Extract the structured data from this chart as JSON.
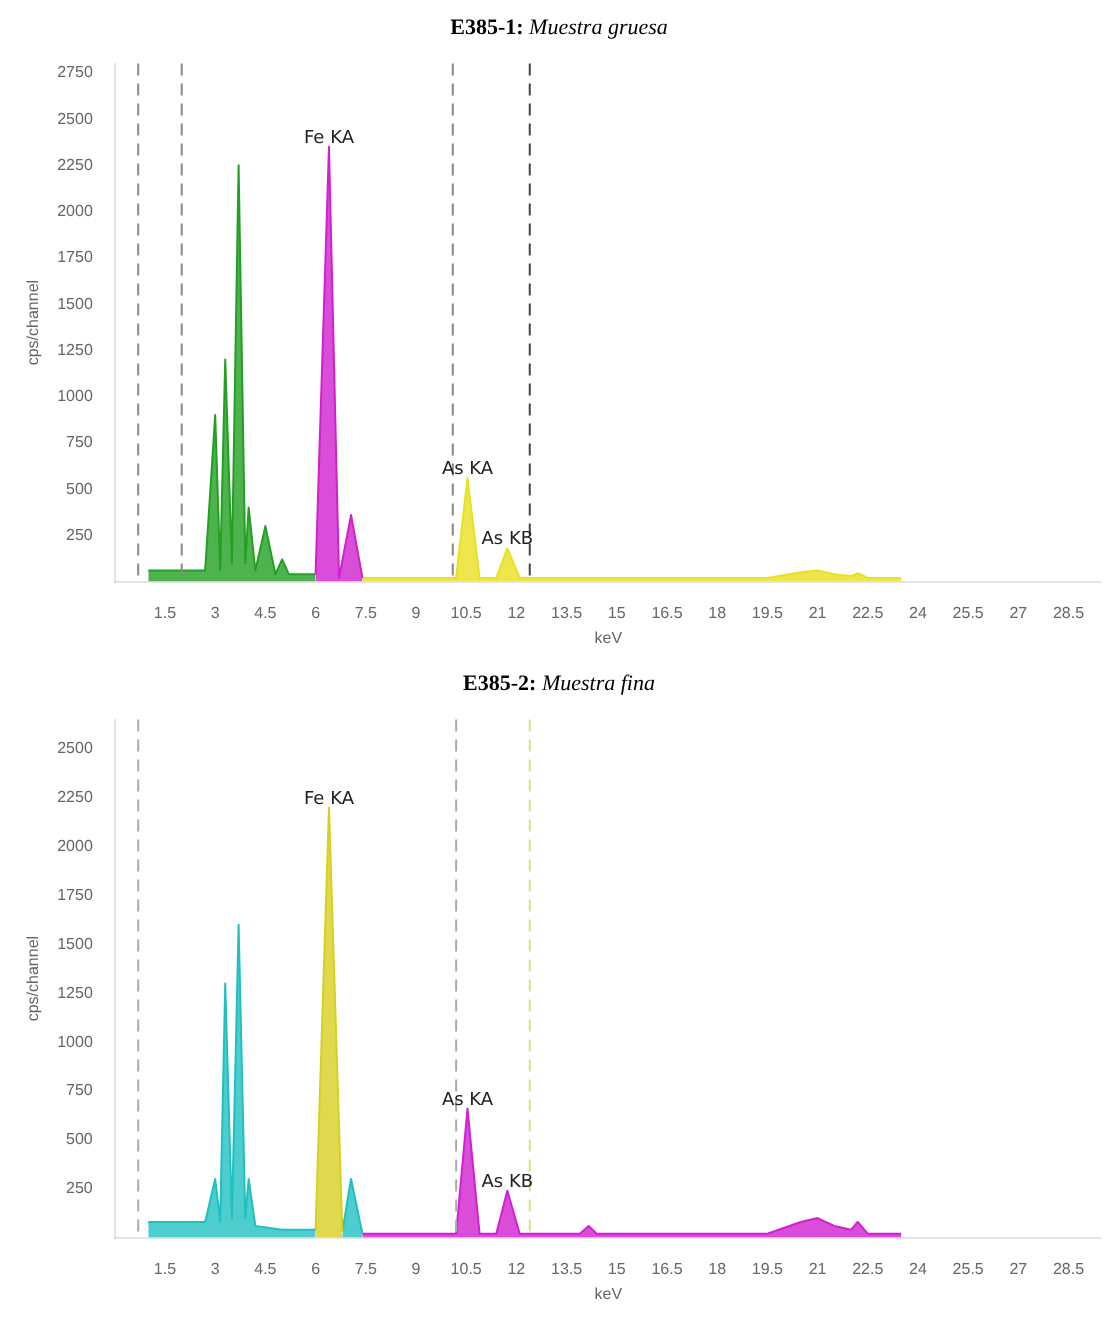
{
  "chart_data": [
    {
      "type": "area",
      "title": "E385-1: Muestra gruesa",
      "xlabel": "keV",
      "ylabel": "cps/channel",
      "xlim": [
        0,
        29.5
      ],
      "xticks": [
        1.5,
        3,
        4.5,
        6,
        7.5,
        9,
        10.5,
        12,
        13.5,
        15,
        16.5,
        18,
        19.5,
        21,
        22.5,
        24,
        25.5,
        27,
        28.5
      ],
      "ylim": [
        0,
        2800
      ],
      "yticks": [
        250,
        500,
        750,
        1000,
        1250,
        1500,
        1750,
        2000,
        2250,
        2500,
        2750
      ],
      "grid": false,
      "legend": false,
      "series": [
        {
          "color": "#22a022",
          "x": [
            1.0,
            2.7,
            3.0,
            3.15,
            3.3,
            3.5,
            3.7,
            3.9,
            4.0,
            4.2,
            4.5,
            4.8,
            5.0,
            5.2,
            6.0
          ],
          "values": [
            60,
            60,
            900,
            60,
            1200,
            100,
            2250,
            100,
            400,
            60,
            300,
            40,
            120,
            40,
            40
          ]
        },
        {
          "color": "#d020d0",
          "x": [
            6.0,
            6.4,
            6.7,
            7.06,
            7.4
          ],
          "values": [
            40,
            2350,
            20,
            360,
            20
          ]
        },
        {
          "color": "#e8e020",
          "x": [
            7.4,
            10.2,
            10.54,
            10.9,
            11.4,
            11.73,
            12.1,
            19.5,
            20.5,
            21.0,
            21.5,
            22.0,
            22.2,
            22.5,
            23.5
          ],
          "values": [
            20,
            20,
            560,
            20,
            20,
            180,
            20,
            20,
            50,
            60,
            40,
            30,
            45,
            20,
            20
          ]
        }
      ],
      "ref_lines": [
        {
          "axis": "x",
          "value": 0.7,
          "line_style": "dashed",
          "color": "#888888"
        },
        {
          "axis": "x",
          "value": 2.0,
          "line_style": "dashed",
          "color": "#888888"
        },
        {
          "axis": "x",
          "value": 10.1,
          "line_style": "dashed",
          "color": "#888888"
        },
        {
          "axis": "x",
          "value": 12.4,
          "line_style": "dashed",
          "color": "#444444"
        }
      ],
      "annotations": [
        {
          "text": "Fe KA",
          "x": 6.4,
          "y": 2350
        },
        {
          "text": "As KA",
          "x": 10.54,
          "y": 560
        },
        {
          "text": "As KB",
          "x": 11.73,
          "y": 180
        }
      ]
    },
    {
      "type": "area",
      "title": "E385-2: Muestra fina",
      "xlabel": "keV",
      "ylabel": "cps/channel",
      "xlim": [
        0,
        29.5
      ],
      "xticks": [
        1.5,
        3,
        4.5,
        6,
        7.5,
        9,
        10.5,
        12,
        13.5,
        15,
        16.5,
        18,
        19.5,
        21,
        22.5,
        24,
        25.5,
        27,
        28.5
      ],
      "ylim": [
        0,
        2650
      ],
      "yticks": [
        250,
        500,
        750,
        1000,
        1250,
        1500,
        1750,
        2000,
        2250,
        2500
      ],
      "grid": false,
      "legend": false,
      "series": [
        {
          "color": "#20c0c0",
          "x": [
            1.0,
            2.7,
            3.0,
            3.15,
            3.3,
            3.5,
            3.7,
            3.9,
            4.0,
            4.2,
            5.0,
            6.0
          ],
          "values": [
            80,
            80,
            300,
            80,
            1300,
            100,
            1600,
            100,
            300,
            60,
            40,
            40
          ]
        },
        {
          "color": "#d8d020",
          "x": [
            6.0,
            6.4,
            6.8
          ],
          "values": [
            40,
            2200,
            30
          ]
        },
        {
          "color": "#20c0c0",
          "x": [
            6.8,
            7.06,
            7.4
          ],
          "values": [
            30,
            300,
            20
          ]
        },
        {
          "color": "#d020d0",
          "x": [
            7.4,
            10.2,
            10.54,
            10.9,
            11.4,
            11.73,
            12.1,
            13.9,
            14.16,
            14.4,
            19.5,
            20.5,
            21.0,
            21.5,
            22.0,
            22.2,
            22.5,
            23.5
          ],
          "values": [
            20,
            20,
            660,
            20,
            20,
            240,
            20,
            20,
            60,
            20,
            20,
            80,
            100,
            60,
            40,
            80,
            20,
            20
          ]
        }
      ],
      "ref_lines": [
        {
          "axis": "x",
          "value": 0.7,
          "line_style": "dashed",
          "color": "#aaaaaa"
        },
        {
          "axis": "x",
          "value": 10.2,
          "line_style": "dashed",
          "color": "#aaaaaa"
        },
        {
          "axis": "x",
          "value": 12.4,
          "line_style": "dashed",
          "color": "#e0e080"
        }
      ],
      "annotations": [
        {
          "text": "Fe KA",
          "x": 6.4,
          "y": 2200
        },
        {
          "text": "As KA",
          "x": 10.54,
          "y": 660
        },
        {
          "text": "As KB",
          "x": 11.73,
          "y": 240
        }
      ]
    }
  ]
}
